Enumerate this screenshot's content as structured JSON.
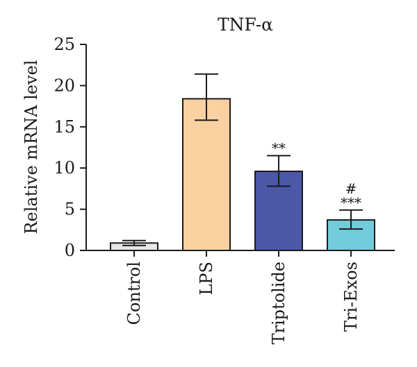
{
  "chart_data": {
    "type": "bar",
    "title": "TNF-α",
    "ylabel": "Relative mRNA level",
    "xlabel": "",
    "ylim": [
      0,
      25
    ],
    "yticks": [
      0,
      5,
      10,
      15,
      20,
      25
    ],
    "categories": [
      "Control",
      "LPS",
      "Triptolide",
      "Tri-Exos"
    ],
    "values": [
      0.9,
      18.4,
      9.6,
      3.7
    ],
    "errors_low": [
      0.3,
      2.6,
      1.8,
      1.1
    ],
    "errors_high": [
      0.3,
      3.0,
      1.9,
      1.2
    ],
    "significance": [
      "",
      "",
      "**",
      "***"
    ],
    "significance_extra": [
      "",
      "",
      "",
      "#"
    ],
    "colors": [
      "#e6e6e6",
      "#fbd1a2",
      "#4b58a8",
      "#73ccdb"
    ],
    "grid": false,
    "legend": "none"
  }
}
